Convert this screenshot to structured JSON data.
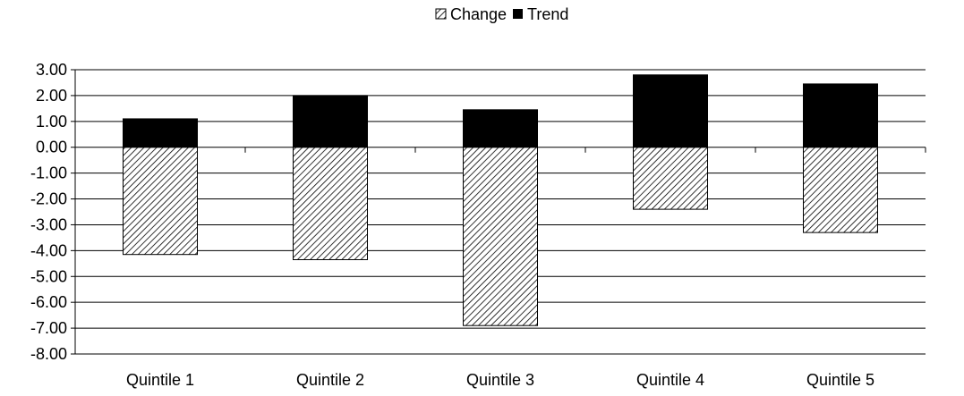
{
  "chart_data": {
    "type": "bar",
    "stacked": true,
    "categories": [
      "Quintile 1",
      "Quintile 2",
      "Quintile 3",
      "Quintile 4",
      "Quintile 5"
    ],
    "series": [
      {
        "name": "Change",
        "values": [
          -4.15,
          -4.35,
          -6.9,
          -2.4,
          -3.3
        ],
        "pattern": "diagonal-hatch",
        "color": "#000000"
      },
      {
        "name": "Trend",
        "values": [
          1.1,
          2.0,
          1.45,
          2.8,
          2.45
        ],
        "pattern": "solid",
        "color": "#000000"
      }
    ],
    "ylim": [
      -8,
      3
    ],
    "yticks": [
      "3.00",
      "2.00",
      "1.00",
      "0.00",
      "-1.00",
      "-2.00",
      "-3.00",
      "-4.00",
      "-5.00",
      "-6.00",
      "-7.00",
      "-8.00"
    ],
    "grid": true,
    "legend": "top-center"
  }
}
